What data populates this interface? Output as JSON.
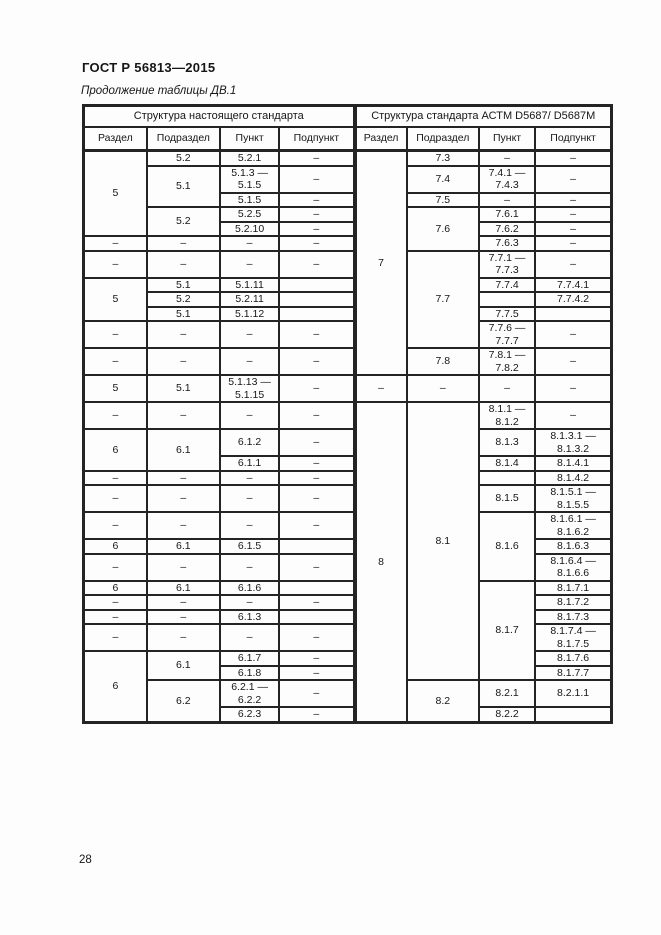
{
  "page": {
    "standard_code": "ГОСТ Р 56813—2015",
    "table_caption": "Продолжение таблицы ДВ.1",
    "page_number": "28"
  },
  "table": {
    "section_headers": [
      "Структура настоящего стандарта",
      "Структура стандарта АСТМ D5687/ D5687M"
    ],
    "column_headers": [
      "Раздел",
      "Подраздел",
      "Пункт",
      "Подпункт",
      "Раздел",
      "Подраздел",
      "Пункт",
      "Подпункт"
    ],
    "rows": [
      [
        {
          "t": "5",
          "rs": 5
        },
        {
          "t": "5.2"
        },
        {
          "t": "5.2.1"
        },
        {
          "t": "–"
        },
        {
          "t": "7",
          "rs": 12,
          "m": true
        },
        {
          "t": "7.3"
        },
        {
          "t": "–"
        },
        {
          "t": "–"
        }
      ],
      [
        {
          "t": "5.1",
          "rs": 2
        },
        {
          "t": "5.1.3 —\n5.1.5"
        },
        {
          "t": "–"
        },
        {
          "t": "7.4"
        },
        {
          "t": "7.4.1 —\n7.4.3"
        },
        {
          "t": "–"
        }
      ],
      [
        {
          "t": "5.1.5"
        },
        {
          "t": "–"
        },
        {
          "t": "7.5"
        },
        {
          "t": "–"
        },
        {
          "t": "–"
        }
      ],
      [
        {
          "t": "5.2",
          "rs": 2
        },
        {
          "t": "5.2.5"
        },
        {
          "t": "–"
        },
        {
          "t": "7.6",
          "rs": 3
        },
        {
          "t": "7.6.1"
        },
        {
          "t": "–"
        }
      ],
      [
        {
          "t": "5.2.10"
        },
        {
          "t": "–"
        },
        {
          "t": "7.6.2"
        },
        {
          "t": "–"
        }
      ],
      [
        {
          "t": "–"
        },
        {
          "t": "–"
        },
        {
          "t": "–"
        },
        {
          "t": "–"
        },
        {
          "t": "7.6.3"
        },
        {
          "t": "–"
        }
      ],
      [
        {
          "t": "–"
        },
        {
          "t": "–"
        },
        {
          "t": "–"
        },
        {
          "t": "–"
        },
        {
          "t": "7.7",
          "rs": 5
        },
        {
          "t": "7.7.1 —\n7.7.3"
        },
        {
          "t": "–"
        }
      ],
      [
        {
          "t": "5",
          "rs": 3
        },
        {
          "t": "5.1"
        },
        {
          "t": "5.1.11"
        },
        {
          "t": ""
        },
        {
          "t": "7.7.4"
        },
        {
          "t": "7.7.4.1"
        }
      ],
      [
        {
          "t": "5.2"
        },
        {
          "t": "5.2.11"
        },
        {
          "t": ""
        },
        {
          "t": ""
        },
        {
          "t": "7.7.4.2"
        }
      ],
      [
        {
          "t": "5.1"
        },
        {
          "t": "5.1.12"
        },
        {
          "t": ""
        },
        {
          "t": "7.7.5"
        },
        {
          "t": ""
        }
      ],
      [
        {
          "t": "–"
        },
        {
          "t": "–"
        },
        {
          "t": "–"
        },
        {
          "t": "–"
        },
        {
          "t": "7.7.6 —\n7.7.7"
        },
        {
          "t": "–"
        }
      ],
      [
        {
          "t": "–"
        },
        {
          "t": "–"
        },
        {
          "t": "–"
        },
        {
          "t": "–"
        },
        {
          "t": "7.8"
        },
        {
          "t": "7.8.1 —\n7.8.2"
        },
        {
          "t": "–"
        }
      ],
      [
        {
          "t": "5"
        },
        {
          "t": "5.1"
        },
        {
          "t": "5.1.13 —\n5.1.15"
        },
        {
          "t": "–"
        },
        {
          "t": "–",
          "m": true
        },
        {
          "t": "–"
        },
        {
          "t": "–"
        },
        {
          "t": "–"
        }
      ],
      [
        {
          "t": "–"
        },
        {
          "t": "–"
        },
        {
          "t": "–"
        },
        {
          "t": "–"
        },
        {
          "t": "8",
          "rs": 16,
          "m": true
        },
        {
          "t": "8.1",
          "rs": 14
        },
        {
          "t": "8.1.1 —\n8.1.2"
        },
        {
          "t": "–"
        }
      ],
      [
        {
          "t": "6",
          "rs": 2
        },
        {
          "t": "6.1",
          "rs": 2
        },
        {
          "t": "6.1.2"
        },
        {
          "t": "–"
        },
        {
          "t": "8.1.3"
        },
        {
          "t": "8.1.3.1 —\n8.1.3.2"
        }
      ],
      [
        {
          "t": "6.1.1"
        },
        {
          "t": "–"
        },
        {
          "t": "8.1.4"
        },
        {
          "t": "8.1.4.1"
        }
      ],
      [
        {
          "t": "–"
        },
        {
          "t": "–"
        },
        {
          "t": "–"
        },
        {
          "t": "–"
        },
        {
          "t": ""
        },
        {
          "t": "8.1.4.2"
        }
      ],
      [
        {
          "t": "–"
        },
        {
          "t": "–"
        },
        {
          "t": "–"
        },
        {
          "t": "–"
        },
        {
          "t": "8.1.5"
        },
        {
          "t": "8.1.5.1 —\n8.1.5.5"
        }
      ],
      [
        {
          "t": "–"
        },
        {
          "t": "–"
        },
        {
          "t": "–"
        },
        {
          "t": "–"
        },
        {
          "t": "8.1.6",
          "rs": 3
        },
        {
          "t": "8.1.6.1 —\n8.1.6.2"
        }
      ],
      [
        {
          "t": "6"
        },
        {
          "t": "6.1"
        },
        {
          "t": "6.1.5"
        },
        {
          "t": ""
        },
        {
          "t": "8.1.6.3"
        }
      ],
      [
        {
          "t": "–"
        },
        {
          "t": "–"
        },
        {
          "t": "–"
        },
        {
          "t": "–"
        },
        {
          "t": "8.1.6.4 —\n8.1.6.6"
        }
      ],
      [
        {
          "t": "6"
        },
        {
          "t": "6.1"
        },
        {
          "t": "6.1.6"
        },
        {
          "t": ""
        },
        {
          "t": "8.1.7",
          "rs": 6
        },
        {
          "t": "8.1.7.1"
        }
      ],
      [
        {
          "t": "–"
        },
        {
          "t": "–"
        },
        {
          "t": "–"
        },
        {
          "t": "–"
        },
        {
          "t": "8.1.7.2"
        }
      ],
      [
        {
          "t": "–"
        },
        {
          "t": "–"
        },
        {
          "t": "6.1.3"
        },
        {
          "t": ""
        },
        {
          "t": "8.1.7.3"
        }
      ],
      [
        {
          "t": "–"
        },
        {
          "t": "–"
        },
        {
          "t": "–"
        },
        {
          "t": "–"
        },
        {
          "t": "8.1.7.4 —\n8.1.7.5"
        }
      ],
      [
        {
          "t": "6",
          "rs": 4
        },
        {
          "t": "6.1",
          "rs": 2
        },
        {
          "t": "6.1.7"
        },
        {
          "t": "–"
        },
        {
          "t": "8.1.7.6"
        }
      ],
      [
        {
          "t": "6.1.8"
        },
        {
          "t": "–"
        },
        {
          "t": "8.1.7.7"
        }
      ],
      [
        {
          "t": "6.2",
          "rs": 2
        },
        {
          "t": "6.2.1 —\n6.2.2"
        },
        {
          "t": "–"
        },
        {
          "t": "8.2",
          "rs": 2
        },
        {
          "t": "8.2.1"
        },
        {
          "t": "8.2.1.1"
        }
      ],
      [
        {
          "t": "6.2.3"
        },
        {
          "t": "–"
        },
        {
          "t": "8.2.2"
        },
        {
          "t": ""
        }
      ]
    ]
  }
}
